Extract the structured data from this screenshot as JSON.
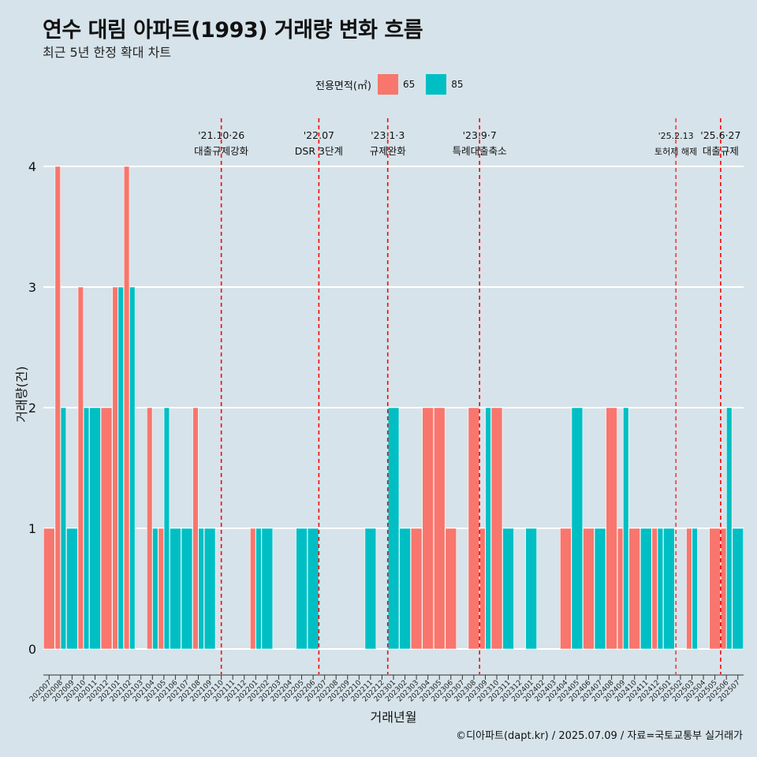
{
  "header": {
    "title": "연수 대림 아파트(1993) 거래량 변화 흐름",
    "subtitle": "최근 5년 한정 확대 차트"
  },
  "legend": {
    "title": "전용면적(㎡)",
    "items": [
      {
        "label": "65",
        "color": "#f8766d"
      },
      {
        "label": "85",
        "color": "#00bfc4"
      }
    ]
  },
  "caption": "©디아파트(dapt.kr) / 2025.07.09 / 자료=국토교통부 실거래가",
  "chart_data": {
    "type": "bar",
    "title": "연수 대림 아파트(1993) 거래량 변화 흐름",
    "xlabel": "거래년월",
    "ylabel": "거래량(건)",
    "ylim": [
      0,
      4
    ],
    "yticks": [
      0,
      1,
      2,
      3,
      4
    ],
    "categories": [
      "202007",
      "202008",
      "202009",
      "202010",
      "202011",
      "202012",
      "202101",
      "202102",
      "202103",
      "202104",
      "202105",
      "202106",
      "202107",
      "202108",
      "202109",
      "202110",
      "202111",
      "202112",
      "202201",
      "202202",
      "202203",
      "202204",
      "202205",
      "202206",
      "202207",
      "202208",
      "202209",
      "202210",
      "202211",
      "202212",
      "202301",
      "202302",
      "202303",
      "202304",
      "202305",
      "202306",
      "202307",
      "202308",
      "202309",
      "202310",
      "202311",
      "202312",
      "202401",
      "202402",
      "202403",
      "202404",
      "202405",
      "202406",
      "202407",
      "202408",
      "202409",
      "202410",
      "202411",
      "202412",
      "202501",
      "202502",
      "202503",
      "202504",
      "202505",
      "202506",
      "202507"
    ],
    "series": [
      {
        "name": "65",
        "color": "#f8766d",
        "values": [
          1,
          4,
          0,
          3,
          0,
          2,
          3,
          4,
          0,
          2,
          1,
          0,
          0,
          2,
          0,
          0,
          0,
          0,
          1,
          0,
          0,
          0,
          0,
          0,
          0,
          0,
          0,
          0,
          0,
          0,
          0,
          0,
          1,
          2,
          2,
          1,
          0,
          2,
          1,
          2,
          0,
          0,
          0,
          0,
          0,
          1,
          0,
          1,
          0,
          2,
          1,
          1,
          0,
          1,
          0,
          0,
          1,
          0,
          1,
          1,
          0
        ]
      },
      {
        "name": "85",
        "color": "#00bfc4",
        "values": [
          0,
          2,
          1,
          2,
          2,
          0,
          3,
          3,
          0,
          1,
          2,
          1,
          1,
          1,
          1,
          0,
          0,
          0,
          1,
          1,
          0,
          0,
          1,
          1,
          0,
          0,
          0,
          0,
          1,
          0,
          2,
          1,
          0,
          0,
          0,
          0,
          0,
          0,
          2,
          0,
          1,
          0,
          1,
          0,
          0,
          0,
          2,
          0,
          1,
          0,
          2,
          0,
          1,
          1,
          1,
          0,
          1,
          0,
          0,
          2,
          1
        ]
      }
    ],
    "events": [
      {
        "line1": "'21.10·26",
        "line2": "대출규제강화",
        "x_index": 15.5,
        "small": false
      },
      {
        "line1": "'22.07",
        "line2": "DSR 3단계",
        "x_index": 24.0,
        "small": false
      },
      {
        "line1": "'23.1·3",
        "line2": "규제완화",
        "x_index": 30.0,
        "small": false
      },
      {
        "line1": "'23.9·7",
        "line2": "특례대출축소",
        "x_index": 38.0,
        "small": false
      },
      {
        "line1": "'25.2.13",
        "line2": "토허제 해제",
        "x_index": 55.1,
        "small": true
      },
      {
        "line1": "'25.6·27",
        "line2": "대출규제",
        "x_index": 59.0,
        "small": false
      }
    ]
  }
}
